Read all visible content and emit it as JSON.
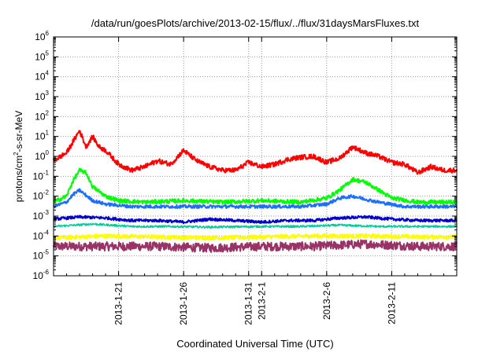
{
  "chart_data": {
    "type": "line",
    "title": "/data/run/goesPlots/archive/2013-02-15/flux/../flux/31daysMarsFluxes.txt",
    "xlabel": "Coordinated Universal Time (UTC)",
    "ylabel_parts": [
      "protons/cm",
      "2",
      "-s-sr-MeV"
    ],
    "y_scale": "log",
    "ylim": [
      1e-06,
      1000000.0
    ],
    "xlim": [
      "2013-01-16",
      "2013-02-16"
    ],
    "grid": true,
    "x_tick_labels": [
      "2013-1-21",
      "2013-1-26",
      "2013-1-31",
      "2013-2-1",
      "2013-2-6",
      "2013-2-11"
    ],
    "x_tick_dates": [
      "2013-01-21",
      "2013-01-26",
      "2013-01-31",
      "2013-02-01",
      "2013-02-06",
      "2013-02-11"
    ],
    "y_ticks": [
      {
        "base": "10",
        "exp": "6"
      },
      {
        "base": "10",
        "exp": "5"
      },
      {
        "base": "10",
        "exp": "4"
      },
      {
        "base": "10",
        "exp": "3"
      },
      {
        "base": "10",
        "exp": "2"
      },
      {
        "base": "10",
        "exp": "1"
      },
      {
        "base": "10",
        "exp": "0"
      },
      {
        "base": "10",
        "exp": "-1"
      },
      {
        "base": "10",
        "exp": "-2"
      },
      {
        "base": "10",
        "exp": "-3"
      },
      {
        "base": "10",
        "exp": "-4"
      },
      {
        "base": "10",
        "exp": "-5"
      },
      {
        "base": "10",
        "exp": "-6"
      }
    ],
    "series_colors": [
      "#ff0000",
      "#00ff00",
      "#1e6fff",
      "#0000cc",
      "#00cc99",
      "#ffff00",
      "#993366"
    ],
    "series": [
      {
        "color": "#ff0000",
        "x": [
          "2013-01-16",
          "2013-01-17",
          "2013-01-18",
          "2013-01-18T12:00",
          "2013-01-19",
          "2013-01-19T12:00",
          "2013-01-20",
          "2013-01-21",
          "2013-01-22",
          "2013-01-23",
          "2013-01-24",
          "2013-01-25",
          "2013-01-26",
          "2013-01-27",
          "2013-01-28",
          "2013-01-29",
          "2013-01-30",
          "2013-01-31",
          "2013-02-01",
          "2013-02-02",
          "2013-02-03",
          "2013-02-04",
          "2013-02-05",
          "2013-02-06",
          "2013-02-07",
          "2013-02-08",
          "2013-02-09",
          "2013-02-10",
          "2013-02-11",
          "2013-02-12",
          "2013-02-13",
          "2013-02-14",
          "2013-02-15",
          "2013-02-16"
        ],
        "y": [
          0.6,
          1.5,
          20,
          3,
          10,
          3,
          2,
          0.4,
          0.2,
          0.3,
          0.6,
          0.4,
          2,
          0.6,
          0.3,
          0.2,
          0.2,
          0.5,
          0.3,
          0.4,
          0.7,
          0.9,
          1,
          0.5,
          0.8,
          3,
          1.5,
          1,
          0.5,
          0.4,
          0.15,
          0.3,
          0.2,
          0.2
        ]
      },
      {
        "color": "#00ff00",
        "x": [
          "2013-01-16",
          "2013-01-17",
          "2013-01-17T12:00",
          "2013-01-18",
          "2013-01-18T12:00",
          "2013-01-19",
          "2013-01-20",
          "2013-01-21",
          "2013-01-23",
          "2013-01-26",
          "2013-01-29",
          "2013-02-01",
          "2013-02-04",
          "2013-02-06",
          "2013-02-07",
          "2013-02-08",
          "2013-02-09",
          "2013-02-10",
          "2013-02-11",
          "2013-02-13",
          "2013-02-16"
        ],
        "y": [
          0.005,
          0.01,
          0.06,
          0.2,
          0.15,
          0.03,
          0.01,
          0.006,
          0.005,
          0.006,
          0.005,
          0.006,
          0.005,
          0.008,
          0.02,
          0.07,
          0.05,
          0.02,
          0.008,
          0.005,
          0.005
        ]
      },
      {
        "color": "#1e6fff",
        "x": [
          "2013-01-16",
          "2013-01-17",
          "2013-01-17T12:00",
          "2013-01-18",
          "2013-01-19",
          "2013-01-20",
          "2013-01-22",
          "2013-01-25",
          "2013-01-28",
          "2013-02-01",
          "2013-02-04",
          "2013-02-06",
          "2013-02-07",
          "2013-02-08",
          "2013-02-09",
          "2013-02-10",
          "2013-02-12",
          "2013-02-16"
        ],
        "y": [
          0.003,
          0.005,
          0.012,
          0.02,
          0.006,
          0.004,
          0.003,
          0.003,
          0.003,
          0.003,
          0.003,
          0.004,
          0.008,
          0.01,
          0.007,
          0.005,
          0.003,
          0.003
        ]
      },
      {
        "color": "#0000cc",
        "x": [
          "2013-01-16",
          "2013-01-18",
          "2013-01-20",
          "2013-01-22",
          "2013-01-24",
          "2013-01-26",
          "2013-01-28",
          "2013-01-30",
          "2013-02-01",
          "2013-02-03",
          "2013-02-05",
          "2013-02-07",
          "2013-02-09",
          "2013-02-11",
          "2013-02-13",
          "2013-02-16"
        ],
        "y": [
          0.0007,
          0.0009,
          0.0008,
          0.0006,
          0.0006,
          0.0005,
          0.0007,
          0.0006,
          0.0005,
          0.0006,
          0.0006,
          0.0008,
          0.0009,
          0.0007,
          0.0006,
          0.0006
        ]
      },
      {
        "color": "#00cc99",
        "x": [
          "2013-01-16",
          "2013-01-19",
          "2013-01-22",
          "2013-01-25",
          "2013-01-28",
          "2013-02-01",
          "2013-02-04",
          "2013-02-07",
          "2013-02-10",
          "2013-02-13",
          "2013-02-16"
        ],
        "y": [
          0.0003,
          0.0004,
          0.0003,
          0.0003,
          0.00028,
          0.0003,
          0.0003,
          0.00035,
          0.0003,
          0.0003,
          0.0003
        ]
      },
      {
        "color": "#ffff00",
        "x": [
          "2013-01-16",
          "2013-01-20",
          "2013-01-24",
          "2013-01-28",
          "2013-02-01",
          "2013-02-05",
          "2013-02-09",
          "2013-02-13",
          "2013-02-16"
        ],
        "y": [
          8e-05,
          0.0001,
          9e-05,
          8e-05,
          9e-05,
          0.0001,
          0.0001,
          9e-05,
          9e-05
        ]
      },
      {
        "color": "#993366",
        "x": [
          "2013-01-16",
          "2013-01-20",
          "2013-01-24",
          "2013-01-28",
          "2013-02-01",
          "2013-02-05",
          "2013-02-09",
          "2013-02-13",
          "2013-02-16"
        ],
        "y": [
          3e-05,
          3e-05,
          3e-05,
          2.5e-05,
          3e-05,
          3e-05,
          4e-05,
          3e-05,
          3e-05
        ]
      }
    ]
  }
}
